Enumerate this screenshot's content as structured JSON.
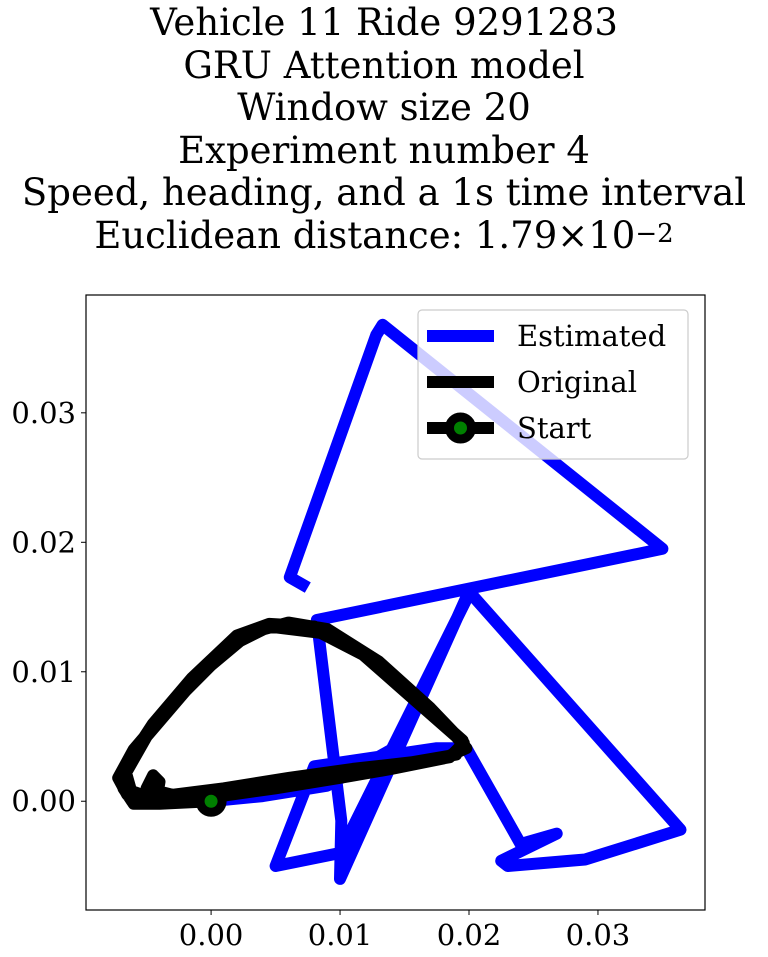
{
  "title_lines": [
    "Vehicle 11 Ride 9291283",
    "GRU Attention model",
    "Window size 20",
    "Experiment number 4",
    "Speed, heading, and a 1s time interval"
  ],
  "title_metric": {
    "prefix": "Euclidean distance: 1.79×10",
    "exponent": "−2"
  },
  "chart_data": {
    "type": "line",
    "title": "Vehicle 11 Ride 9291283 GRU Attention model Window size 20 Experiment number 4 Speed, heading, and a 1s time interval Euclidean distance: 1.79×10^-2",
    "xlabel": "",
    "ylabel": "",
    "xlim": [
      -0.0097,
      0.0383
    ],
    "ylim": [
      -0.0084,
      0.0391
    ],
    "x_ticks": [
      0.0,
      0.01,
      0.02,
      0.03
    ],
    "x_tick_labels": [
      "0.00",
      "0.01",
      "0.02",
      "0.03"
    ],
    "y_ticks": [
      0.0,
      0.01,
      0.02,
      0.03
    ],
    "y_tick_labels": [
      "0.00",
      "0.01",
      "0.02",
      "0.03"
    ],
    "grid": false,
    "legend_position": "top-right",
    "series": [
      {
        "name": "Estimated",
        "color": "#0000ff",
        "points": [
          [
            0.0075,
            0.0165
          ],
          [
            0.0061,
            0.0173
          ],
          [
            0.0128,
            0.036
          ],
          [
            0.0133,
            0.0368
          ],
          [
            0.035,
            0.0195
          ],
          [
            0.0082,
            0.014
          ],
          [
            0.0101,
            -0.0015
          ],
          [
            0.01,
            -0.006
          ],
          [
            0.02,
            0.0162
          ],
          [
            0.0364,
            -0.0022
          ],
          [
            0.029,
            -0.0045
          ],
          [
            0.023,
            -0.005
          ],
          [
            0.0225,
            -0.0046
          ],
          [
            0.0268,
            -0.0025
          ],
          [
            0.024,
            -0.0033
          ],
          [
            0.0198,
            0.0041
          ],
          [
            0.0175,
            0.0041
          ],
          [
            0.008,
            0.0027
          ],
          [
            0.005,
            -0.005
          ],
          [
            0.01,
            -0.004
          ],
          [
            0.02,
            0.016
          ],
          [
            0.014,
            0.004
          ],
          [
            0.009,
            0.0012
          ],
          [
            0.004,
            0.0004
          ],
          [
            0.0,
            0.0
          ]
        ]
      },
      {
        "name": "Original",
        "color": "#000000",
        "points": [
          [
            0.0,
            0.0
          ],
          [
            -0.004,
            -0.0002
          ],
          [
            -0.006,
            -0.0002
          ],
          [
            -0.0068,
            0.001
          ],
          [
            -0.0068,
            0.0025
          ],
          [
            -0.0045,
            0.006
          ],
          [
            -0.0015,
            0.0095
          ],
          [
            0.002,
            0.0128
          ],
          [
            0.0045,
            0.0137
          ],
          [
            0.008,
            0.0135
          ],
          [
            0.011,
            0.012
          ],
          [
            0.015,
            0.0085
          ],
          [
            0.019,
            0.005
          ],
          [
            0.0198,
            0.0041
          ],
          [
            0.018,
            0.0033
          ],
          [
            0.014,
            0.0025
          ],
          [
            0.01,
            0.0018
          ],
          [
            0.005,
            0.001
          ],
          [
            0.0,
            0.0003
          ],
          [
            -0.0045,
            -0.0002
          ],
          [
            -0.0065,
            0.0005
          ],
          [
            -0.0072,
            0.0018
          ],
          [
            -0.006,
            0.004
          ],
          [
            -0.003,
            0.0075
          ],
          [
            0.0,
            0.0105
          ],
          [
            0.003,
            0.013
          ],
          [
            0.006,
            0.0138
          ],
          [
            0.009,
            0.0133
          ],
          [
            0.013,
            0.0108
          ],
          [
            0.017,
            0.0072
          ],
          [
            0.0196,
            0.0045
          ],
          [
            0.0185,
            0.0034
          ],
          [
            0.015,
            0.0028
          ],
          [
            0.011,
            0.0022
          ],
          [
            0.006,
            0.0015
          ],
          [
            0.001,
            0.0006
          ],
          [
            -0.004,
            0.0
          ],
          [
            -0.0062,
            0.0008
          ],
          [
            -0.0066,
            0.0022
          ],
          [
            -0.005,
            0.005
          ],
          [
            -0.002,
            0.0085
          ],
          [
            0.0015,
            0.012
          ],
          [
            0.0045,
            0.0135
          ],
          [
            0.0085,
            0.013
          ],
          [
            0.012,
            0.0112
          ],
          [
            0.016,
            0.0078
          ],
          [
            0.0195,
            0.0047
          ],
          [
            0.019,
            0.0036
          ],
          [
            0.0155,
            0.003
          ],
          [
            0.011,
            0.0025
          ],
          [
            0.006,
            0.0018
          ],
          [
            0.001,
            0.001
          ],
          [
            -0.003,
            0.0005
          ],
          [
            -0.005,
            0.001
          ],
          [
            -0.0045,
            0.002
          ],
          [
            -0.004,
            0.0015
          ],
          [
            -0.0042,
            0.0003
          ]
        ]
      },
      {
        "name": "Start",
        "color": "#000000",
        "marker_color": "#008000",
        "points": [
          [
            0.0,
            0.0
          ]
        ]
      }
    ]
  }
}
